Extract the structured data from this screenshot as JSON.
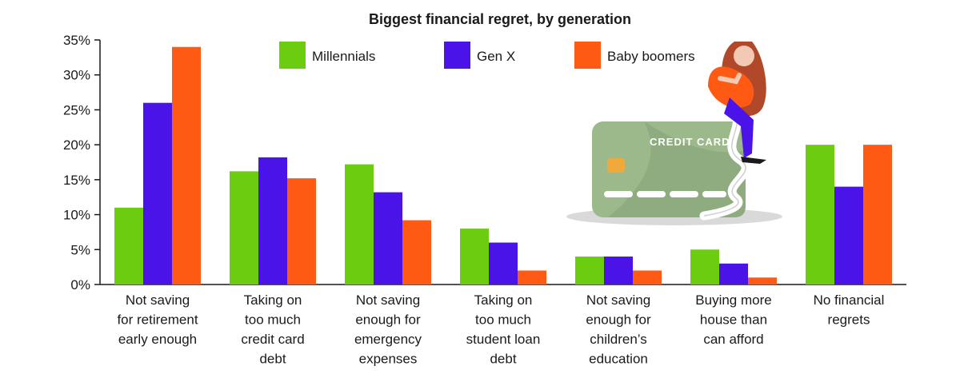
{
  "chart_data": {
    "type": "bar",
    "title": "Biggest financial regret, by generation",
    "xlabel": "",
    "ylabel": "",
    "ylim": [
      0,
      35
    ],
    "yticks": [
      "0%",
      "5%",
      "10%",
      "15%",
      "20%",
      "25%",
      "30%",
      "35%"
    ],
    "ytick_values": [
      0,
      5,
      10,
      15,
      20,
      25,
      30,
      35
    ],
    "grid": false,
    "legend_position": "top",
    "categories": [
      [
        "Not saving",
        "for retirement",
        "early enough"
      ],
      [
        "Taking on",
        "too much",
        "credit card",
        "debt"
      ],
      [
        "Not saving",
        "enough for",
        "emergency",
        "expenses"
      ],
      [
        "Taking on",
        "too much",
        "student loan",
        "debt"
      ],
      [
        "Not saving",
        "enough for",
        "children’s",
        "education"
      ],
      [
        "Buying more",
        "house than",
        "can afford"
      ],
      [
        "No financial",
        "regrets"
      ]
    ],
    "series": [
      {
        "name": "Millennials",
        "color": "#6ccc0f",
        "values": [
          11,
          16.2,
          17.2,
          8,
          4,
          5,
          20
        ]
      },
      {
        "name": "Gen X",
        "color": "#4a14e8",
        "values": [
          26,
          18.2,
          13.2,
          6,
          4,
          3,
          14
        ]
      },
      {
        "name": "Baby boomers",
        "color": "#ff5a14",
        "values": [
          34,
          15.2,
          9.2,
          2,
          2,
          1,
          20
        ]
      }
    ],
    "illustration": {
      "name": "woman-sitting-on-credit-card",
      "card_text": "CREDIT CARD"
    }
  }
}
